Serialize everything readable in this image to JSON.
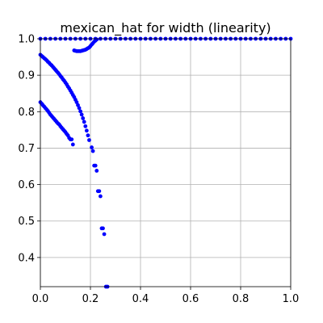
{
  "chart_data": {
    "type": "scatter",
    "title": "mexican_hat for width (linearity)",
    "xlabel": "",
    "ylabel": "",
    "xlim": [
      0,
      1
    ],
    "ylim": [
      0.32,
      1.0
    ],
    "x_ticks": [
      0.0,
      0.2,
      0.4,
      0.6,
      0.8,
      1.0
    ],
    "x_tick_labels": [
      "0.0",
      "0.2",
      "0.4",
      "0.6",
      "0.8",
      "1.0"
    ],
    "y_ticks": [
      0.4,
      0.5,
      0.6,
      0.7,
      0.8,
      0.9,
      1.0
    ],
    "y_tick_labels": [
      "0.4",
      "0.5",
      "0.6",
      "0.7",
      "0.8",
      "0.9",
      "1.0"
    ],
    "grid": true,
    "marker_color": "#0000ff",
    "series": [
      {
        "points": [
          [
            0.0,
            0.956
          ],
          [
            0.005,
            0.953
          ],
          [
            0.01,
            0.95
          ],
          [
            0.015,
            0.947
          ],
          [
            0.02,
            0.944
          ],
          [
            0.025,
            0.941
          ],
          [
            0.03,
            0.937
          ],
          [
            0.035,
            0.934
          ],
          [
            0.04,
            0.93
          ],
          [
            0.045,
            0.927
          ],
          [
            0.05,
            0.923
          ],
          [
            0.055,
            0.919
          ],
          [
            0.06,
            0.915
          ],
          [
            0.065,
            0.911
          ],
          [
            0.07,
            0.907
          ],
          [
            0.075,
            0.903
          ],
          [
            0.08,
            0.898
          ],
          [
            0.085,
            0.894
          ],
          [
            0.09,
            0.889
          ],
          [
            0.095,
            0.885
          ],
          [
            0.1,
            0.88
          ],
          [
            0.105,
            0.875
          ],
          [
            0.11,
            0.869
          ],
          [
            0.115,
            0.864
          ],
          [
            0.12,
            0.858
          ],
          [
            0.125,
            0.852
          ],
          [
            0.13,
            0.846
          ],
          [
            0.135,
            0.84
          ],
          [
            0.14,
            0.833
          ],
          [
            0.145,
            0.826
          ],
          [
            0.15,
            0.818
          ],
          [
            0.155,
            0.81
          ],
          [
            0.16,
            0.801
          ],
          [
            0.165,
            0.792
          ],
          [
            0.17,
            0.782
          ],
          [
            0.175,
            0.772
          ],
          [
            0.18,
            0.76
          ],
          [
            0.185,
            0.748
          ],
          [
            0.19,
            0.735
          ],
          [
            0.195,
            0.722
          ],
          [
            0.205,
            0.702
          ],
          [
            0.21,
            0.692
          ],
          [
            0.215,
            0.652
          ],
          [
            0.22,
            0.652
          ],
          [
            0.225,
            0.638
          ],
          [
            0.23,
            0.582
          ],
          [
            0.235,
            0.582
          ],
          [
            0.24,
            0.568
          ],
          [
            0.245,
            0.48
          ],
          [
            0.25,
            0.48
          ],
          [
            0.255,
            0.464
          ],
          [
            0.262,
            0.32
          ],
          [
            0.268,
            0.32
          ],
          [
            0.0,
            0.826
          ],
          [
            0.005,
            0.822
          ],
          [
            0.01,
            0.818
          ],
          [
            0.015,
            0.814
          ],
          [
            0.02,
            0.81
          ],
          [
            0.025,
            0.806
          ],
          [
            0.03,
            0.802
          ],
          [
            0.035,
            0.797
          ],
          [
            0.04,
            0.792
          ],
          [
            0.045,
            0.788
          ],
          [
            0.05,
            0.784
          ],
          [
            0.055,
            0.78
          ],
          [
            0.06,
            0.776
          ],
          [
            0.065,
            0.772
          ],
          [
            0.07,
            0.768
          ],
          [
            0.075,
            0.765
          ],
          [
            0.08,
            0.76
          ],
          [
            0.085,
            0.756
          ],
          [
            0.09,
            0.752
          ],
          [
            0.095,
            0.748
          ],
          [
            0.1,
            0.744
          ],
          [
            0.105,
            0.739
          ],
          [
            0.11,
            0.735
          ],
          [
            0.115,
            0.728
          ],
          [
            0.12,
            0.724
          ],
          [
            0.125,
            0.724
          ],
          [
            0.13,
            0.71
          ],
          [
            0.135,
            0.968
          ],
          [
            0.14,
            0.967
          ],
          [
            0.145,
            0.966
          ],
          [
            0.15,
            0.966
          ],
          [
            0.155,
            0.966
          ],
          [
            0.16,
            0.966
          ],
          [
            0.165,
            0.967
          ],
          [
            0.17,
            0.968
          ],
          [
            0.175,
            0.969
          ],
          [
            0.18,
            0.97
          ],
          [
            0.185,
            0.972
          ],
          [
            0.19,
            0.974
          ],
          [
            0.195,
            0.976
          ],
          [
            0.2,
            0.98
          ],
          [
            0.205,
            0.984
          ],
          [
            0.21,
            0.988
          ],
          [
            0.215,
            0.992
          ],
          [
            0.22,
            0.995
          ],
          [
            0.225,
            0.998
          ],
          [
            0.0,
            1.0
          ],
          [
            0.02,
            1.0
          ],
          [
            0.04,
            1.0
          ],
          [
            0.06,
            1.0
          ],
          [
            0.08,
            1.0
          ],
          [
            0.1,
            1.0
          ],
          [
            0.12,
            1.0
          ],
          [
            0.14,
            1.0
          ],
          [
            0.16,
            1.0
          ],
          [
            0.18,
            1.0
          ],
          [
            0.2,
            1.0
          ],
          [
            0.22,
            1.0
          ],
          [
            0.24,
            1.0
          ],
          [
            0.26,
            1.0
          ],
          [
            0.28,
            1.0
          ],
          [
            0.3,
            1.0
          ],
          [
            0.32,
            1.0
          ],
          [
            0.34,
            1.0
          ],
          [
            0.36,
            1.0
          ],
          [
            0.38,
            1.0
          ],
          [
            0.4,
            1.0
          ],
          [
            0.42,
            1.0
          ],
          [
            0.44,
            1.0
          ],
          [
            0.46,
            1.0
          ],
          [
            0.48,
            1.0
          ],
          [
            0.5,
            1.0
          ],
          [
            0.52,
            1.0
          ],
          [
            0.54,
            1.0
          ],
          [
            0.56,
            1.0
          ],
          [
            0.58,
            1.0
          ],
          [
            0.6,
            1.0
          ],
          [
            0.62,
            1.0
          ],
          [
            0.64,
            1.0
          ],
          [
            0.66,
            1.0
          ],
          [
            0.68,
            1.0
          ],
          [
            0.7,
            1.0
          ],
          [
            0.72,
            1.0
          ],
          [
            0.74,
            1.0
          ],
          [
            0.76,
            1.0
          ],
          [
            0.78,
            1.0
          ],
          [
            0.8,
            1.0
          ],
          [
            0.82,
            1.0
          ],
          [
            0.84,
            1.0
          ],
          [
            0.86,
            1.0
          ],
          [
            0.88,
            1.0
          ],
          [
            0.9,
            1.0
          ],
          [
            0.92,
            1.0
          ],
          [
            0.94,
            1.0
          ],
          [
            0.96,
            1.0
          ],
          [
            0.98,
            1.0
          ],
          [
            1.0,
            1.0
          ]
        ]
      }
    ]
  }
}
